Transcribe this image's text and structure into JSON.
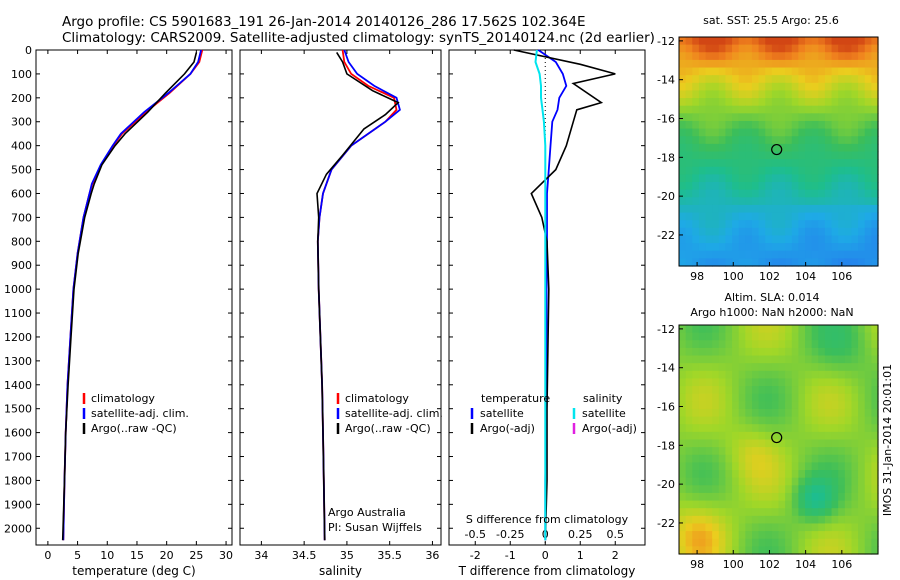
{
  "header": {
    "line1": "Argo profile: CS 5901683_191 26-Jan-2014 20140126_286 17.562S 102.364E",
    "line2": "Climatology: CARS2009. Satellite-adjusted climatology: synTS_20140124.nc (2d earlier)"
  },
  "depth_ticks": [
    0,
    100,
    200,
    300,
    400,
    500,
    600,
    700,
    800,
    900,
    1000,
    1100,
    1200,
    1300,
    1400,
    1500,
    1600,
    1700,
    1800,
    1900,
    2000
  ],
  "colors": {
    "climatology": "#ff0000",
    "satellite": "#0000ff",
    "argo": "#000000",
    "sat_diff_s": "#00e5ee",
    "argo_adj_s": "#e020e0"
  },
  "chart_data": [
    {
      "type": "line",
      "title": "temperature profile",
      "xlabel": "temperature (deg C)",
      "ylabel": "",
      "xlim": [
        -2,
        31
      ],
      "ylim": [
        2070,
        0
      ],
      "xticks": [
        0,
        5,
        10,
        15,
        20,
        25,
        30
      ],
      "legend": [
        "climatology",
        "satellite-adj. clim.",
        "Argo(..raw -QC)"
      ],
      "series": [
        {
          "name": "climatology",
          "color": "#ff0000",
          "x": [
            26.0,
            25.5,
            24.0,
            20.5,
            16.5,
            12.5,
            11.0,
            9.0,
            7.5,
            7.0,
            6.0,
            5.0,
            4.3,
            3.8,
            3.3,
            3.0,
            2.8,
            2.6
          ],
          "y": [
            0,
            50,
            100,
            180,
            260,
            350,
            400,
            480,
            560,
            600,
            700,
            850,
            1000,
            1200,
            1400,
            1600,
            1800,
            2050
          ]
        },
        {
          "name": "satellite-adj. clim.",
          "color": "#0000ff",
          "x": [
            25.8,
            25.3,
            24.0,
            20.3,
            16.2,
            12.3,
            10.9,
            8.9,
            7.4,
            7.0,
            6.0,
            5.0,
            4.3,
            3.8,
            3.3,
            3.0,
            2.8,
            2.6
          ],
          "y": [
            0,
            50,
            100,
            180,
            260,
            350,
            400,
            480,
            560,
            600,
            700,
            850,
            1000,
            1200,
            1400,
            1600,
            1800,
            2050
          ]
        },
        {
          "name": "Argo(..raw -QC)",
          "color": "#000000",
          "x": [
            25.0,
            24.6,
            23.0,
            19.8,
            16.8,
            13.0,
            11.3,
            9.1,
            7.8,
            7.3,
            6.2,
            5.1,
            4.4,
            3.9,
            3.4,
            3.0,
            2.8,
            2.5
          ],
          "y": [
            10,
            50,
            100,
            180,
            260,
            350,
            400,
            480,
            560,
            600,
            700,
            850,
            1000,
            1200,
            1400,
            1600,
            1800,
            2050
          ]
        }
      ]
    },
    {
      "type": "line",
      "title": "salinity profile",
      "xlabel": "salinity",
      "ylabel": "",
      "xlim": [
        33.75,
        36.1
      ],
      "ylim": [
        2070,
        0
      ],
      "xticks": [
        34,
        34.5,
        35,
        35.5,
        36
      ],
      "xticklabels": [
        "34",
        "34.5",
        "35",
        "35.5",
        "36"
      ],
      "legend": [
        "climatology",
        "satellite-adj. clim.",
        "Argo(..raw -QC)"
      ],
      "annotation": [
        "Argo Australia",
        "PI: Susan Wijffels"
      ],
      "series": [
        {
          "name": "climatology",
          "color": "#ff0000",
          "x": [
            34.95,
            34.97,
            35.05,
            35.25,
            35.55,
            35.58,
            35.45,
            35.05,
            34.82,
            34.72,
            34.68,
            34.66,
            34.67,
            34.69,
            34.71,
            34.72,
            34.73,
            34.74
          ],
          "y": [
            0,
            50,
            100,
            150,
            200,
            250,
            300,
            400,
            500,
            600,
            700,
            800,
            1000,
            1200,
            1400,
            1600,
            1800,
            2050
          ]
        },
        {
          "name": "satellite-adj. clim.",
          "color": "#0000ff",
          "x": [
            34.97,
            35.02,
            35.12,
            35.32,
            35.58,
            35.62,
            35.45,
            35.05,
            34.82,
            34.72,
            34.68,
            34.66,
            34.67,
            34.69,
            34.71,
            34.72,
            34.73,
            34.74
          ],
          "y": [
            0,
            50,
            100,
            150,
            200,
            250,
            300,
            400,
            500,
            600,
            700,
            800,
            1000,
            1200,
            1400,
            1600,
            1800,
            2050
          ]
        },
        {
          "name": "Argo(..raw -QC)",
          "color": "#000000",
          "x": [
            34.88,
            34.95,
            35.0,
            35.3,
            35.6,
            35.45,
            35.2,
            34.95,
            34.76,
            34.65,
            34.67,
            34.66,
            34.67,
            34.69,
            34.71,
            34.72,
            34.73,
            34.74
          ],
          "y": [
            10,
            50,
            100,
            170,
            220,
            270,
            330,
            440,
            520,
            600,
            700,
            800,
            1000,
            1200,
            1400,
            1600,
            1800,
            2050
          ]
        }
      ]
    },
    {
      "type": "line",
      "title": "difference from climatology",
      "xlabel": "T difference from climatology",
      "xlabel_top": "S difference from climatology",
      "xlim": [
        -2.75,
        2.85
      ],
      "ylim": [
        2070,
        0
      ],
      "xticks": [
        -2,
        -1,
        0,
        1,
        2
      ],
      "sticks": [
        -0.5,
        -0.25,
        0,
        0.25,
        0.5
      ],
      "sticklabels": [
        "-0.5",
        "-0.25",
        "0",
        "0.25",
        "0.5"
      ],
      "legend_temperature": [
        "temperature",
        "satellite",
        "Argo(-adj)"
      ],
      "legend_salinity": [
        "salinity",
        "satellite",
        "Argo(-adj)"
      ],
      "series": [
        {
          "name": "T satellite",
          "color": "#0000ff",
          "x": [
            -0.2,
            0.3,
            0.5,
            0.6,
            0.4,
            0.35,
            0.2,
            0.15,
            0.1,
            0.05,
            0.05,
            0.05,
            0.04,
            0.03,
            0.0,
            0.0
          ],
          "y": [
            0,
            50,
            100,
            150,
            200,
            250,
            300,
            400,
            500,
            600,
            700,
            800,
            1000,
            1500,
            1800,
            2050
          ]
        },
        {
          "name": "T Argo(-adj)",
          "color": "#000000",
          "x": [
            -0.9,
            1.0,
            2.0,
            0.8,
            1.6,
            0.9,
            0.8,
            0.6,
            0.3,
            -0.4,
            -0.1,
            0.05,
            0.1,
            0.05,
            0.05,
            0.0
          ],
          "y": [
            0,
            60,
            100,
            140,
            220,
            250,
            300,
            400,
            500,
            600,
            700,
            800,
            1000,
            1500,
            1800,
            2050
          ]
        },
        {
          "name": "S satellite",
          "color": "#00e5ee",
          "x": [
            -0.06,
            -0.07,
            -0.04,
            -0.03,
            -0.03,
            -0.02,
            -0.01,
            0.0,
            0.0,
            0.0,
            0.0,
            0.0,
            0.0,
            0.0
          ],
          "y": [
            0,
            50,
            100,
            150,
            200,
            250,
            300,
            400,
            500,
            600,
            800,
            1000,
            1500,
            2050
          ]
        }
      ]
    },
    {
      "type": "heatmap",
      "title": "sat. SST: 25.5  Argo: 25.6",
      "xlim": [
        97,
        108
      ],
      "ylim": [
        -23.6,
        -11.8
      ],
      "xticks": [
        98,
        100,
        102,
        104,
        106
      ],
      "yticks": [
        -12,
        -14,
        -16,
        -18,
        -20,
        -22
      ],
      "marker": [
        102.4,
        -17.6
      ]
    },
    {
      "type": "heatmap",
      "title": [
        "Altim. SLA: 0.014",
        "Argo h1000: NaN h2000: NaN"
      ],
      "xlim": [
        97,
        108
      ],
      "ylim": [
        -23.6,
        -11.8
      ],
      "xticks": [
        98,
        100,
        102,
        104,
        106
      ],
      "yticks": [
        -12,
        -14,
        -16,
        -18,
        -20,
        -22
      ],
      "marker": [
        102.4,
        -17.6
      ],
      "side_label": "IMOS 31-Jan-2014 20:01:01"
    }
  ]
}
